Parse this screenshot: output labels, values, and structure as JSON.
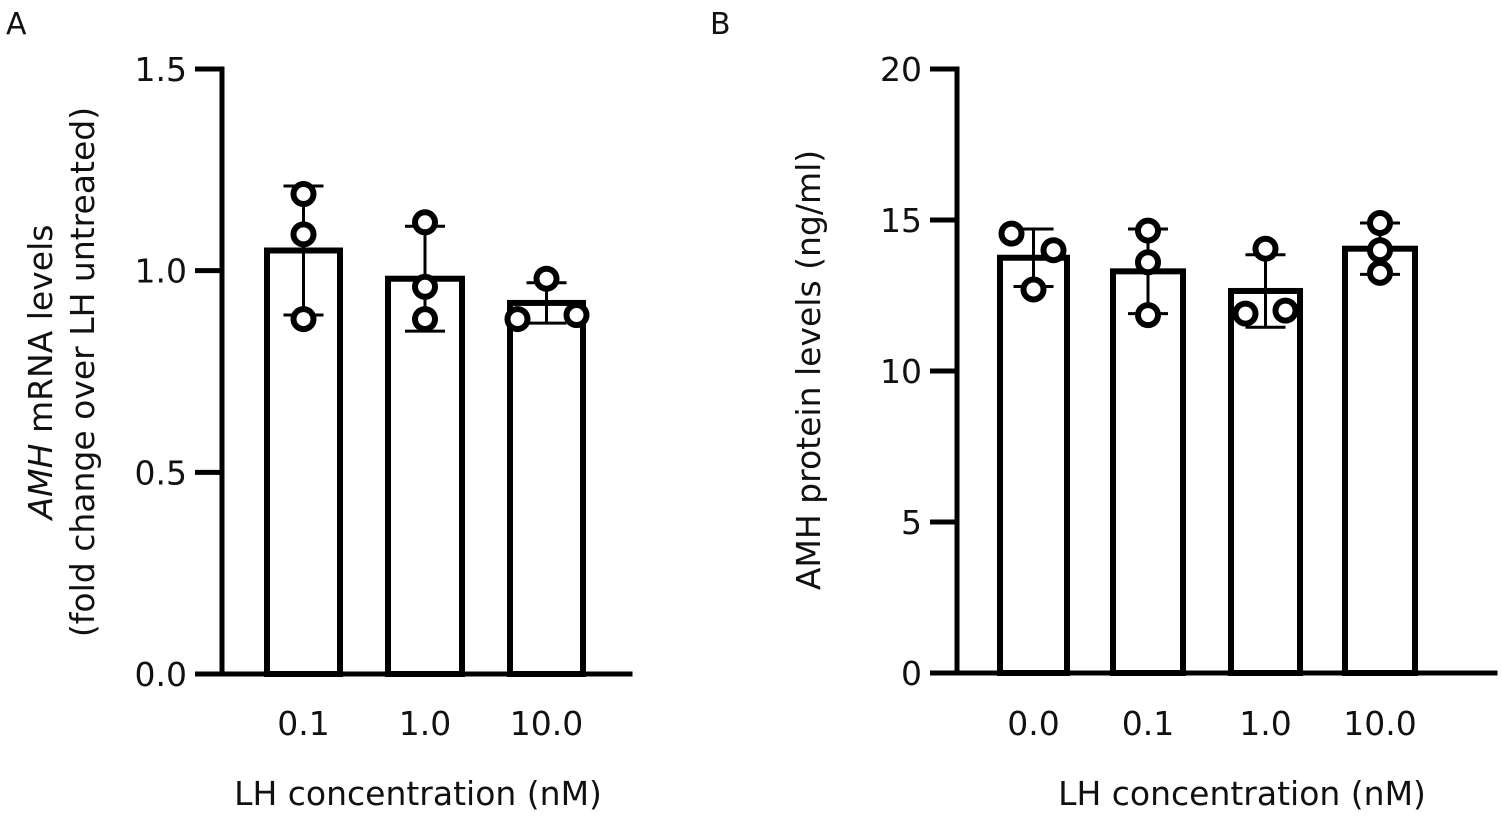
{
  "chart_data": [
    {
      "panel": "A",
      "type": "bar",
      "title": "",
      "xlabel": "LH concentration (nM)",
      "ylabel_italic": "AMH",
      "ylabel_rest": " mRNA levels",
      "ylabel_line2": "(fold change over LH untreated)",
      "ylim": [
        0,
        1.5
      ],
      "yticks": [
        "0.0",
        "0.5",
        "1.0",
        "1.5"
      ],
      "ytick_values": [
        0,
        0.5,
        1.0,
        1.5
      ],
      "categories": [
        "0.1",
        "1.0",
        "10.0"
      ],
      "values": [
        1.05,
        0.98,
        0.92
      ],
      "error_sd": [
        0.16,
        0.13,
        0.05
      ],
      "points": [
        [
          1.19,
          1.09,
          0.88
        ],
        [
          1.12,
          0.96,
          0.88
        ],
        [
          0.98,
          0.88,
          0.89
        ]
      ],
      "grid": false,
      "legend": "none"
    },
    {
      "panel": "B",
      "type": "bar",
      "title": "",
      "xlabel": "LH concentration (nM)",
      "ylabel": "AMH protein levels (ng/ml)",
      "ylim": [
        0,
        20
      ],
      "yticks": [
        "0",
        "5",
        "10",
        "15",
        "20"
      ],
      "ytick_values": [
        0,
        5,
        10,
        15,
        20
      ],
      "categories": [
        "0.0",
        "0.1",
        "1.0",
        "10.0"
      ],
      "values": [
        13.75,
        13.3,
        12.65,
        14.05
      ],
      "error_sd": [
        0.95,
        1.4,
        1.2,
        0.85
      ],
      "points": [
        [
          14.55,
          14.0,
          12.7
        ],
        [
          14.65,
          13.6,
          11.85
        ],
        [
          14.05,
          11.9,
          12.0
        ],
        [
          14.9,
          14.0,
          13.25
        ]
      ],
      "grid": false,
      "legend": "none"
    }
  ]
}
